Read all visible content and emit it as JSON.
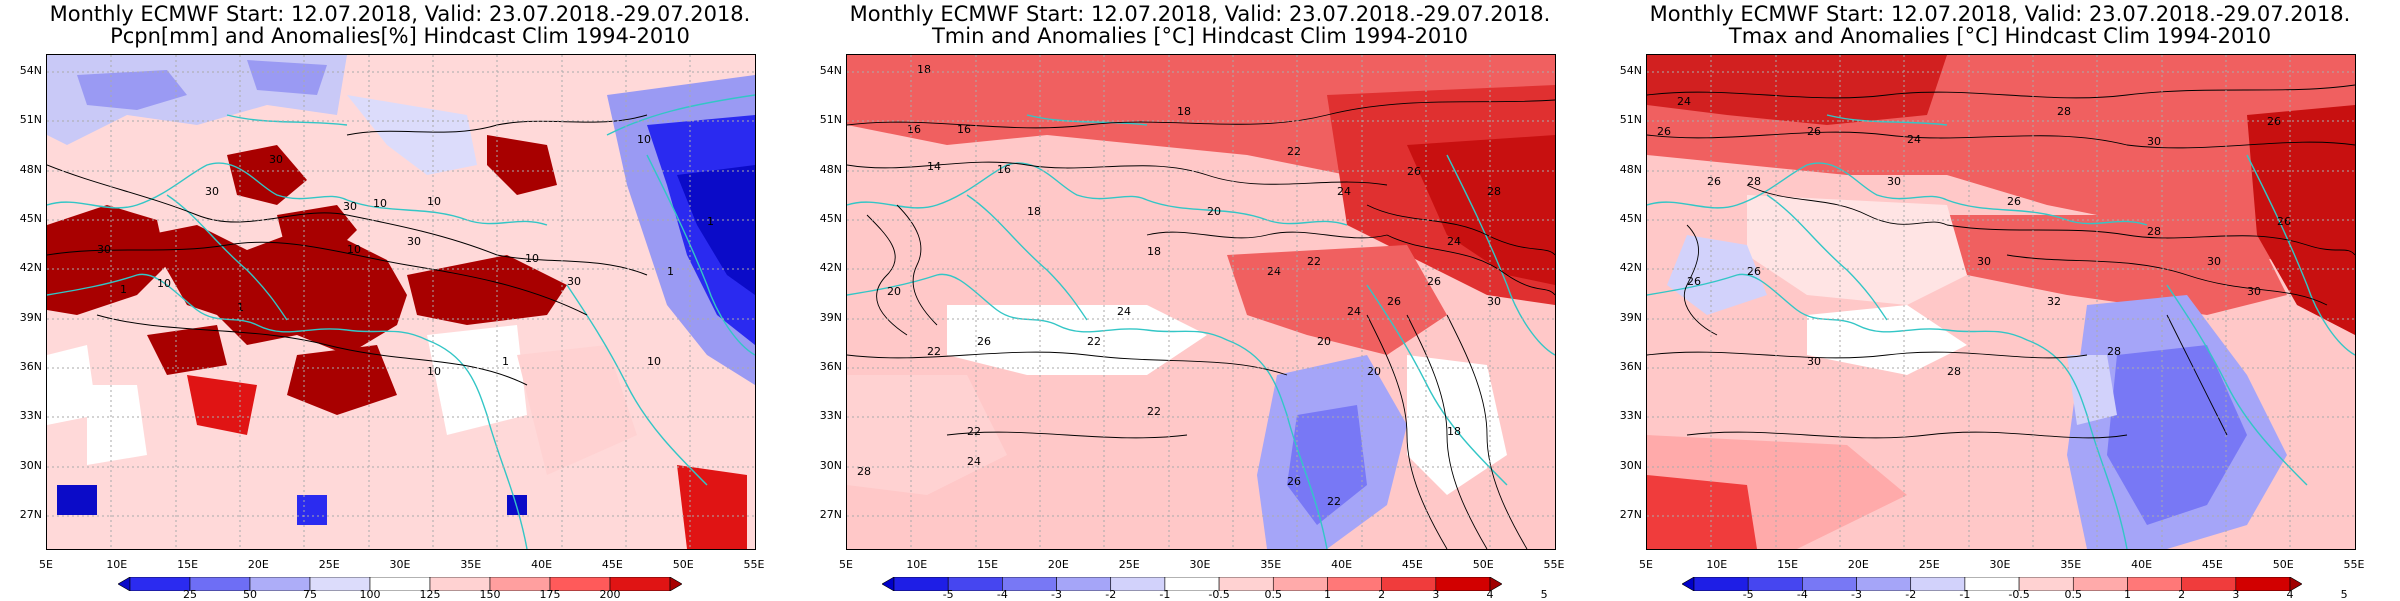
{
  "panels": [
    {
      "title_line1": "Monthly ECMWF Start: 12.07.2018, Valid: 23.07.2018.-29.07.2018.",
      "title_line2": "Pcpn[mm] and Anomalies[%] Hindcast Clim 1994-2010",
      "field": "precipitation",
      "colorbar_labels": [
        "25",
        "50",
        "75",
        "100",
        "125",
        "150",
        "175",
        "200"
      ],
      "colorbar_colors": [
        "#0b0bc8",
        "#2b2bf0",
        "#6e6ef5",
        "#adadf8",
        "#dcdcfb",
        "#ffffff",
        "#ffd2d2",
        "#ff9f9f",
        "#ff5a5a",
        "#e01414",
        "#a80000"
      ],
      "contour_labels": [
        "30",
        "10",
        "30",
        "10",
        "10",
        "30",
        "10",
        "1",
        "10",
        "1",
        "30",
        "10",
        "30",
        "1",
        "10",
        "30",
        "1",
        "10",
        "1"
      ]
    },
    {
      "title_line1": "Monthly ECMWF Start: 12.07.2018, Valid: 23.07.2018.-29.07.2018.",
      "title_line2": "Tmin and Anomalies [°C] Hindcast Clim 1994-2010",
      "field": "tmin",
      "colorbar_labels": [
        "-5",
        "-4",
        "-3",
        "-2",
        "-1",
        "-0.5",
        "0.5",
        "1",
        "2",
        "3",
        "4",
        "5"
      ],
      "colorbar_colors": [
        "#0000c8",
        "#1e1ee6",
        "#4646f0",
        "#7878f5",
        "#a5a5f8",
        "#d2d2fb",
        "#ffffff",
        "#ffd2d2",
        "#ffaaaa",
        "#ff7878",
        "#f03c3c",
        "#d20000",
        "#a00000"
      ],
      "contour_labels": [
        "18",
        "16",
        "16",
        "18",
        "14",
        "16",
        "18",
        "22",
        "24",
        "26",
        "20",
        "24",
        "28",
        "18",
        "24",
        "22",
        "26",
        "30",
        "20",
        "22",
        "26",
        "24",
        "22",
        "20",
        "24",
        "26",
        "22",
        "28",
        "26",
        "22",
        "24",
        "22",
        "20",
        "18"
      ]
    },
    {
      "title_line1": "Monthly ECMWF Start: 12.07.2018, Valid: 23.07.2018.-29.07.2018.",
      "title_line2": "Tmax and Anomalies [°C] Hindcast Clim 1994-2010",
      "field": "tmax",
      "colorbar_labels": [
        "-5",
        "-4",
        "-3",
        "-2",
        "-1",
        "-0.5",
        "0.5",
        "1",
        "2",
        "3",
        "4",
        "5"
      ],
      "colorbar_colors": [
        "#0000c8",
        "#1e1ee6",
        "#4646f0",
        "#7878f5",
        "#a5a5f8",
        "#d2d2fb",
        "#ffffff",
        "#ffd2d2",
        "#ffaaaa",
        "#ff7878",
        "#f03c3c",
        "#d20000",
        "#a00000"
      ],
      "contour_labels": [
        "24",
        "26",
        "26",
        "28",
        "30",
        "26",
        "24",
        "26",
        "28",
        "30",
        "26",
        "30",
        "26",
        "28",
        "30",
        "26",
        "30",
        "28",
        "30",
        "32",
        "26",
        "28"
      ]
    }
  ],
  "lat_labels": [
    "54N",
    "51N",
    "48N",
    "45N",
    "42N",
    "39N",
    "36N",
    "33N",
    "30N",
    "27N"
  ],
  "lon_labels": [
    "5E",
    "10E",
    "15E",
    "20E",
    "25E",
    "30E",
    "35E",
    "40E",
    "45E",
    "50E",
    "55E"
  ],
  "colors": {
    "coastline": "#33c6c6",
    "contour": "#000000",
    "grid": "#aaaaaa"
  }
}
